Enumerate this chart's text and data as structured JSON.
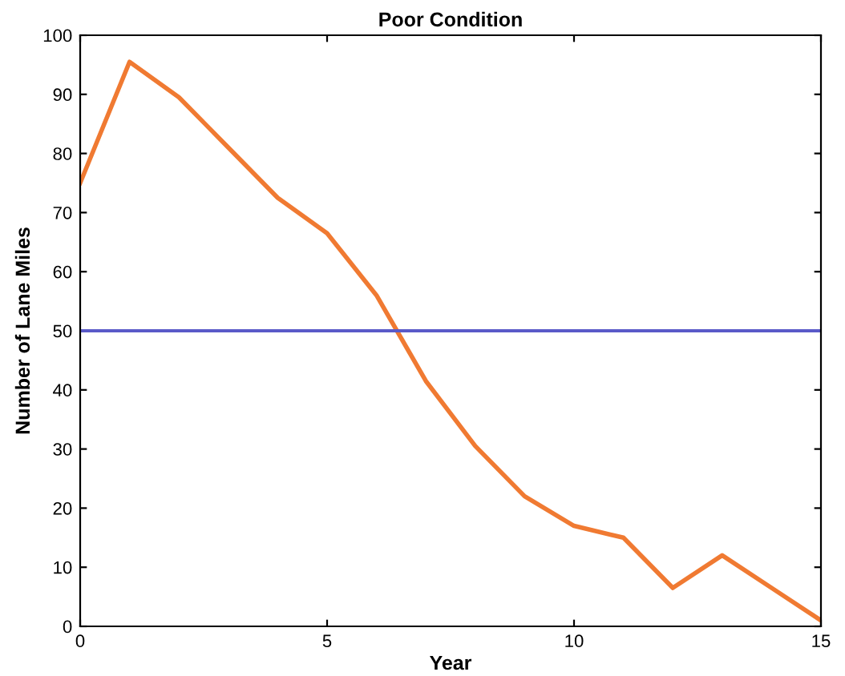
{
  "chart_data": {
    "type": "line",
    "title": "Poor Condition",
    "xlabel": "Year",
    "ylabel": "Number of Lane Miles",
    "x": [
      0,
      1,
      2,
      3,
      4,
      5,
      6,
      7,
      8,
      9,
      10,
      11,
      12,
      13,
      14,
      15
    ],
    "series": [
      {
        "color": "#f07a32",
        "values": [
          75,
          95.5,
          89.5,
          81,
          72.5,
          66.5,
          56,
          41.5,
          30.5,
          22,
          17,
          15,
          6.5,
          12,
          6.5,
          1
        ]
      }
    ],
    "xlim": [
      0,
      15
    ],
    "xticks": [
      0,
      5,
      10,
      15
    ],
    "ylim": [
      0,
      100
    ],
    "yticks": [
      0,
      10,
      20,
      30,
      40,
      50,
      60,
      70,
      80,
      90,
      100
    ],
    "ref_lines": [
      {
        "axis": "y",
        "value": 50,
        "color": "#5a5ac8",
        "line_style": "solid"
      }
    ],
    "grid": false,
    "legend": false,
    "marker": "none",
    "line_style": "solid"
  }
}
